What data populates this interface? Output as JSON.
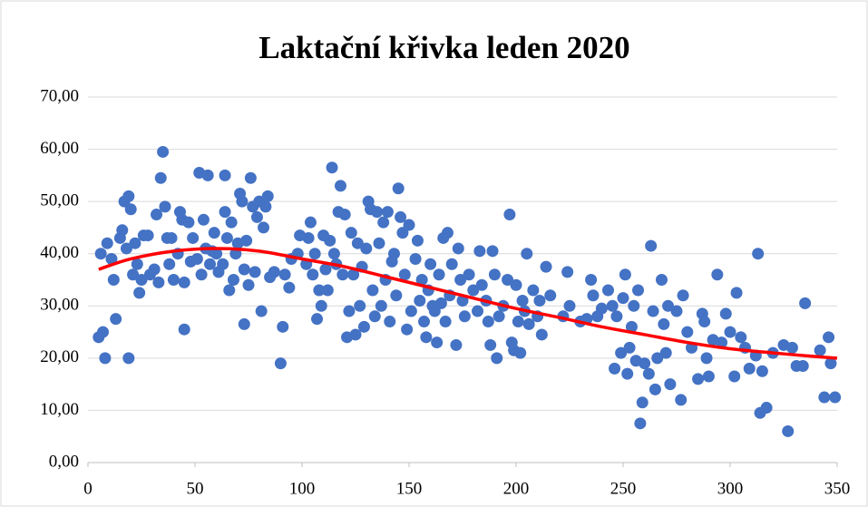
{
  "chart_data": {
    "type": "scatter",
    "title": "Laktační křivka leden 2020",
    "xlim": [
      0,
      350
    ],
    "xticks": [
      0,
      50,
      100,
      150,
      200,
      250,
      300,
      350
    ],
    "ylim": [
      0,
      70
    ],
    "yticks": [
      {
        "value": 0,
        "label": "0,00"
      },
      {
        "value": 10,
        "label": "10,00"
      },
      {
        "value": 20,
        "label": "20,00"
      },
      {
        "value": 30,
        "label": "30,00"
      },
      {
        "value": 40,
        "label": "40,00"
      },
      {
        "value": 50,
        "label": "50,00"
      },
      {
        "value": 60,
        "label": "60,00"
      },
      {
        "value": 70,
        "label": "70,00"
      }
    ],
    "grid": true,
    "series": [
      {
        "color": "#4472c4",
        "x": [
          5,
          6,
          7,
          8,
          9,
          11,
          12,
          13,
          15,
          16,
          17,
          18,
          19,
          19,
          20,
          21,
          22,
          23,
          24,
          25,
          26,
          28,
          29,
          31,
          32,
          33,
          34,
          35,
          36,
          37,
          38,
          39,
          40,
          42,
          43,
          44,
          45,
          45,
          47,
          48,
          49,
          51,
          52,
          53,
          54,
          55,
          56,
          57,
          58,
          59,
          60,
          61,
          63,
          64,
          64,
          65,
          66,
          67,
          68,
          69,
          70,
          71,
          72,
          73,
          73,
          74,
          75,
          76,
          77,
          78,
          79,
          80,
          81,
          82,
          83,
          84,
          85,
          87,
          90,
          91,
          92,
          94,
          95,
          98,
          99,
          102,
          103,
          104,
          105,
          106,
          107,
          108,
          109,
          110,
          111,
          112,
          113,
          114,
          115,
          116,
          117,
          118,
          119,
          120,
          121,
          122,
          123,
          124,
          125,
          126,
          127,
          128,
          129,
          130,
          131,
          132,
          133,
          134,
          135,
          136,
          137,
          138,
          139,
          140,
          141,
          142,
          143,
          144,
          145,
          146,
          147,
          148,
          149,
          150,
          151,
          153,
          154,
          155,
          156,
          157,
          158,
          159,
          160,
          161,
          162,
          163,
          164,
          165,
          166,
          167,
          168,
          169,
          170,
          172,
          173,
          174,
          175,
          176,
          178,
          180,
          182,
          183,
          184,
          186,
          187,
          188,
          189,
          190,
          191,
          192,
          194,
          196,
          197,
          198,
          199,
          200,
          201,
          202,
          203,
          204,
          205,
          206,
          208,
          210,
          211,
          212,
          214,
          216,
          222,
          224,
          225,
          230,
          233,
          235,
          236,
          238,
          240,
          243,
          245,
          246,
          247,
          249,
          250,
          251,
          252,
          253,
          254,
          255,
          256,
          257,
          258,
          259,
          260,
          262,
          263,
          264,
          265,
          266,
          268,
          269,
          270,
          271,
          272,
          275,
          277,
          278,
          280,
          282,
          285,
          287,
          288,
          289,
          290,
          292,
          294,
          296,
          298,
          300,
          302,
          303,
          305,
          307,
          309,
          312,
          313,
          314,
          315,
          317,
          320,
          325,
          327,
          329,
          331,
          334,
          335,
          342,
          344,
          346,
          347,
          349
        ],
        "values": [
          24,
          40,
          25,
          20,
          42,
          39,
          35,
          27.5,
          43,
          44.5,
          50,
          41,
          51,
          20,
          48.5,
          36,
          42,
          38,
          32.5,
          35,
          43.5,
          43.5,
          36,
          37,
          47.5,
          34.5,
          54.5,
          59.5,
          49,
          43,
          38,
          43,
          35,
          40,
          48,
          46.5,
          25.5,
          34.5,
          46,
          38.5,
          43,
          39,
          55.5,
          36,
          46.5,
          41,
          55,
          38,
          40.5,
          44,
          40,
          36.5,
          38,
          55,
          48,
          43,
          33,
          46,
          35,
          40,
          42,
          51.5,
          50,
          37,
          26.5,
          42.5,
          34,
          54.5,
          49,
          36.5,
          47,
          50,
          29,
          45,
          49,
          51,
          35.5,
          36.5,
          19,
          26,
          36,
          33.5,
          39,
          40,
          43.5,
          38,
          43,
          46,
          36,
          40,
          27.5,
          33,
          30,
          43.5,
          37,
          33,
          42.5,
          56.5,
          40,
          38,
          48,
          53,
          36,
          47.5,
          24,
          29,
          44,
          36,
          24.5,
          42,
          30,
          37.5,
          26,
          41,
          50,
          48.5,
          33,
          28,
          48,
          42,
          30,
          46,
          35,
          48,
          27,
          38.5,
          40,
          32,
          52.5,
          47,
          44,
          36,
          25.5,
          45.5,
          29,
          39,
          42.5,
          31,
          35,
          27,
          24,
          33,
          38,
          30,
          29,
          23,
          36,
          30.5,
          43,
          27,
          44,
          32,
          38,
          22.5,
          41,
          35,
          31,
          28,
          36,
          33,
          29,
          40.5,
          34,
          31,
          27,
          22.5,
          40.5,
          36,
          20,
          28,
          30,
          35,
          47.5,
          23,
          21.5,
          34,
          27,
          21,
          31,
          29,
          40,
          26.5,
          33,
          28,
          31,
          24.5,
          37.5,
          32,
          28,
          36.5,
          30,
          27,
          27.5,
          35,
          32,
          28,
          29.5,
          33,
          30,
          18,
          28,
          21,
          31.5,
          36,
          17,
          22,
          26,
          30,
          19.5,
          33,
          7.5,
          11.5,
          19,
          17,
          41.5,
          29,
          14,
          20,
          35,
          26.5,
          21,
          30,
          15,
          29,
          12,
          32,
          25,
          22,
          16,
          28.5,
          27,
          20,
          16.5,
          23.5,
          36,
          23,
          28.5,
          25,
          16.5,
          32.5,
          24,
          22,
          18,
          20.5,
          40,
          9.5,
          17.5,
          10.5,
          21,
          22.5,
          6,
          22,
          18.5,
          18.5,
          30.5,
          21.5,
          12.5,
          24,
          19,
          12.5
        ]
      }
    ],
    "trendline": {
      "color": "#ff0000",
      "x": [
        5,
        20,
        40,
        60,
        80,
        100,
        120,
        140,
        160,
        180,
        200,
        220,
        240,
        260,
        280,
        300,
        320,
        340,
        350
      ],
      "values": [
        37,
        39,
        40.5,
        41,
        40.5,
        39,
        37.5,
        35.5,
        33.5,
        31.5,
        29.5,
        27.8,
        26,
        24.5,
        23,
        21.8,
        21,
        20.3,
        20
      ]
    }
  }
}
